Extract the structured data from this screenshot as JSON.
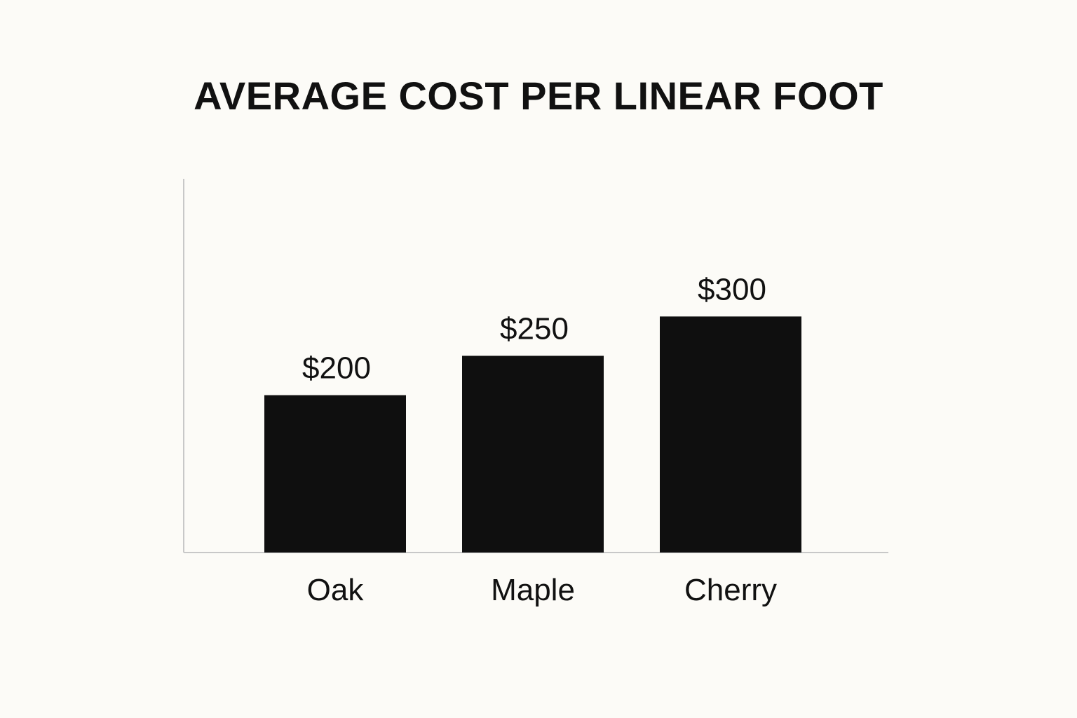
{
  "chart_data": {
    "type": "bar",
    "title": "AVERAGE COST PER LINEAR FOOT",
    "xlabel": "",
    "ylabel": "",
    "categories": [
      "Oak",
      "Maple",
      "Cherry"
    ],
    "values": [
      200,
      250,
      300
    ],
    "value_labels": [
      "$200",
      "$250",
      "$300"
    ],
    "ylim": [
      0,
      475
    ],
    "grid": false,
    "legend": "none",
    "bar_color": "#0f0f0f",
    "axis_color": "#c8c8c8"
  }
}
